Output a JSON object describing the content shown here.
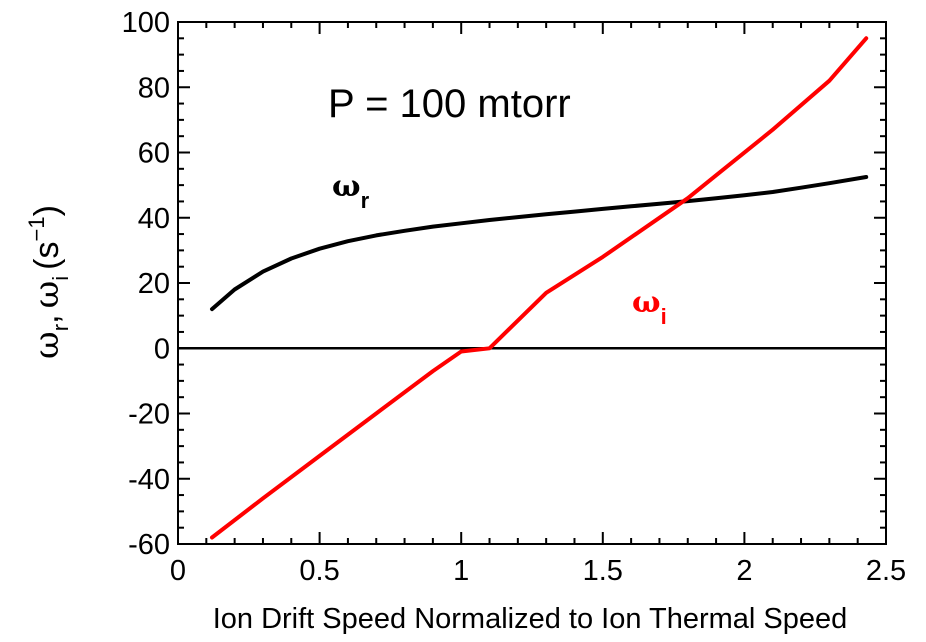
{
  "chart_data": {
    "type": "line",
    "annotation": "P = 100 mtorr",
    "xlabel": "Ion Drift Speed Normalized to Ion Thermal Speed",
    "ylabel": {
      "omega": "ω",
      "sub_r": "r",
      "comma": ",",
      "sub_i": "i",
      "unit_open": "(s",
      "unit_sup": "−1",
      "unit_close": ")"
    },
    "xlim": [
      0,
      2.5
    ],
    "ylim": [
      -60,
      100
    ],
    "x_ticks": [
      "0",
      "0.5",
      "1",
      "1.5",
      "2",
      "2.5"
    ],
    "y_ticks": [
      "100",
      "80",
      "60",
      "40",
      "20",
      "0",
      "-20",
      "-40",
      "-60"
    ],
    "zero_line": true,
    "grid": false,
    "series": [
      {
        "name": "ω_r",
        "label_main": "ω",
        "label_sub": "r",
        "color": "#000000",
        "x": [
          0.12,
          0.2,
          0.3,
          0.4,
          0.5,
          0.6,
          0.7,
          0.8,
          0.9,
          1.0,
          1.1,
          1.2,
          1.3,
          1.4,
          1.5,
          1.6,
          1.7,
          1.8,
          1.9,
          2.0,
          2.1,
          2.2,
          2.3,
          2.43
        ],
        "y": [
          12,
          18,
          23.5,
          27.5,
          30.5,
          32.8,
          34.6,
          36.0,
          37.3,
          38.3,
          39.3,
          40.2,
          41.1,
          41.9,
          42.7,
          43.5,
          44.3,
          45.1,
          46.0,
          46.9,
          47.9,
          49.2,
          50.6,
          52.5
        ]
      },
      {
        "name": "ω_i",
        "label_main": "ω",
        "label_sub": "i",
        "color": "#ff0000",
        "x": [
          0.12,
          0.3,
          0.5,
          0.7,
          0.9,
          1.0,
          1.1,
          1.3,
          1.5,
          1.7,
          1.8,
          1.9,
          2.1,
          2.3,
          2.43
        ],
        "y": [
          -58,
          -46,
          -33,
          -20,
          -7,
          -1,
          0,
          17,
          28,
          40,
          46,
          53,
          67,
          82,
          95
        ]
      }
    ]
  }
}
